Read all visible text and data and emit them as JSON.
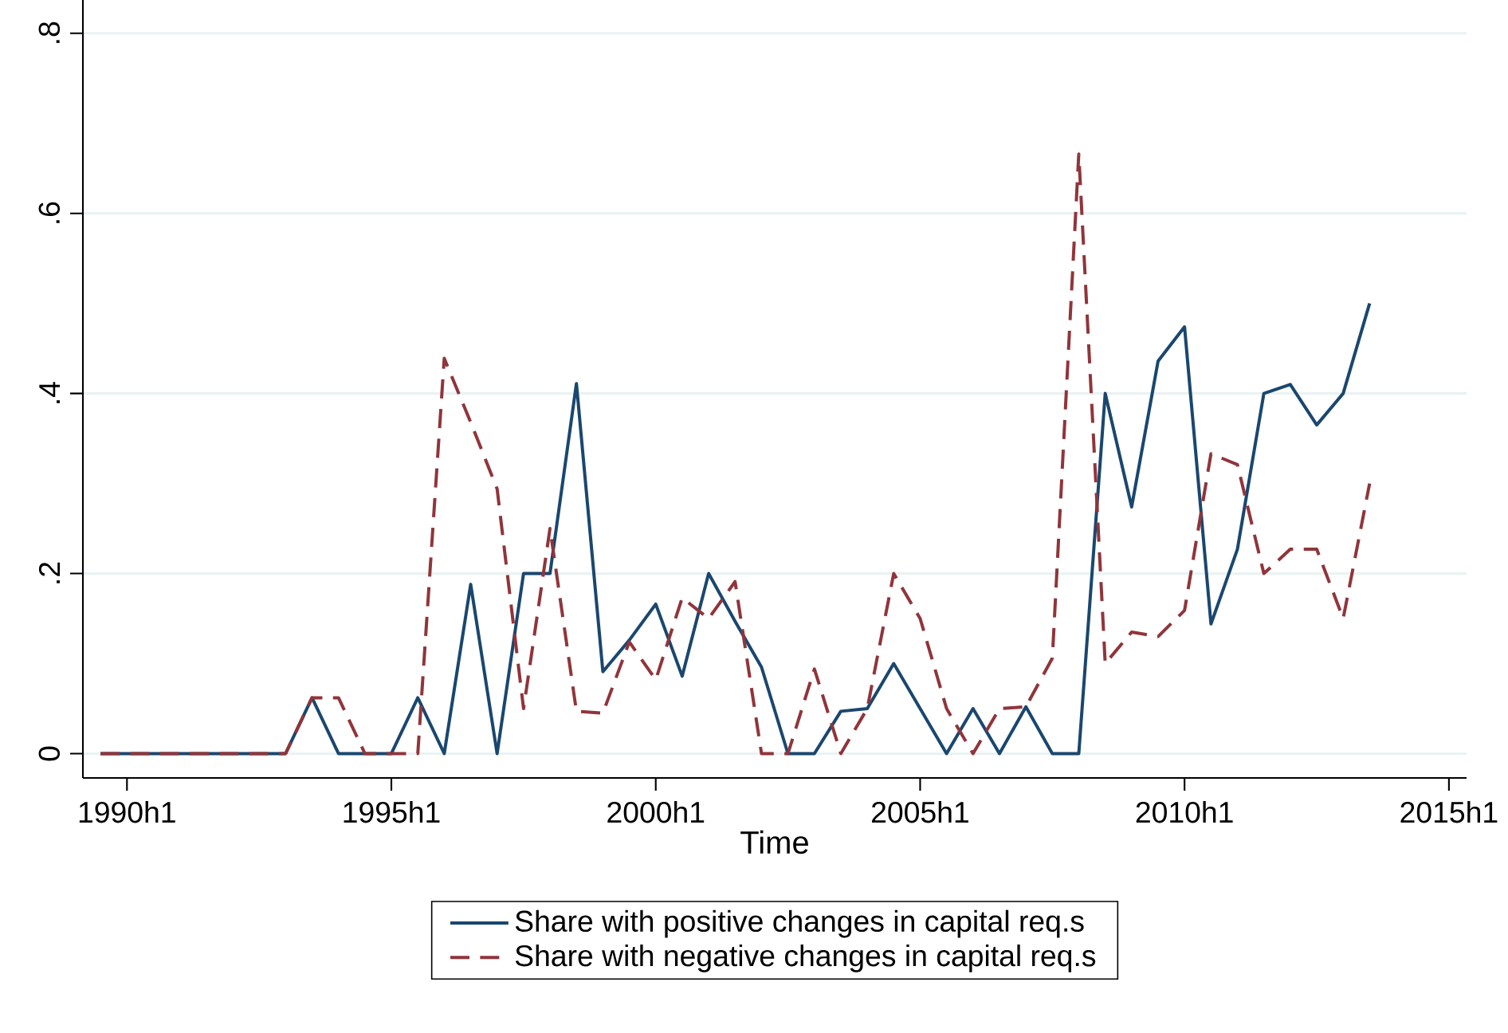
{
  "chart_data": {
    "type": "line",
    "xlabel": "Time",
    "x": [
      "1989-07",
      "1990-01",
      "1990-07",
      "1991-01",
      "1991-07",
      "1992-01",
      "1992-07",
      "1993-01",
      "1993-07",
      "1994-01",
      "1994-07",
      "1995-01",
      "1995-07",
      "1996-01",
      "1996-07",
      "1997-01",
      "1997-07",
      "1998-01",
      "1998-07",
      "1999-01",
      "1999-07",
      "2000-01",
      "2000-07",
      "2001-01",
      "2001-07",
      "2002-01",
      "2002-07",
      "2003-01",
      "2003-07",
      "2004-01",
      "2004-07",
      "2005-01",
      "2005-07",
      "2006-01",
      "2006-07",
      "2007-01",
      "2007-07",
      "2008-01",
      "2008-07",
      "2009-01",
      "2009-07",
      "2010-01",
      "2010-07",
      "2011-01",
      "2011-07",
      "2012-01",
      "2012-07",
      "2013-01",
      "2013-07"
    ],
    "series": [
      {
        "name": "Share with positive changes in capital req.s",
        "color": "#1a476f",
        "line_style": "solid",
        "values": [
          0,
          0,
          0,
          0,
          0,
          0,
          0,
          0,
          0.062,
          0,
          0,
          0,
          0.062,
          0,
          0.188,
          0,
          0.2,
          0.2,
          0.411,
          0.091,
          0.126,
          0.166,
          0.086,
          0.2,
          0.147,
          0.096,
          0,
          0,
          0.047,
          0.05,
          0.1,
          0.05,
          0,
          0.05,
          0,
          0.052,
          0,
          0,
          0.4,
          0.274,
          0.436,
          0.474,
          0.144,
          0.227,
          0.4,
          0.41,
          0.365,
          0.4,
          0.5
        ]
      },
      {
        "name": "Share with negative changes in capital req.s",
        "color": "#90353b",
        "line_style": "dashed",
        "values": [
          0,
          0,
          0,
          0,
          0,
          0,
          0,
          0,
          0.062,
          0.062,
          0,
          0,
          0,
          0.439,
          0.368,
          0.294,
          0.05,
          0.25,
          0.047,
          0.045,
          0.124,
          0.082,
          0.173,
          0.15,
          0.191,
          0,
          0,
          0.094,
          0,
          0.05,
          0.2,
          0.15,
          0.05,
          0,
          0.05,
          0.052,
          0.106,
          0.666,
          0.1,
          0.135,
          0.13,
          0.159,
          0.333,
          0.321,
          0.2,
          0.227,
          0.227,
          0.15,
          0.3
        ]
      }
    ],
    "xlim": [
      "1989-03",
      "2015-05"
    ],
    "ylim": [
      -0.027,
      0.837
    ],
    "xticks": [
      {
        "value": "1990-01",
        "label": "1990h1"
      },
      {
        "value": "1995-01",
        "label": "1995h1"
      },
      {
        "value": "2000-01",
        "label": "2000h1"
      },
      {
        "value": "2005-01",
        "label": "2005h1"
      },
      {
        "value": "2010-01",
        "label": "2010h1"
      },
      {
        "value": "2015-01",
        "label": "2015h1"
      }
    ],
    "yticks": [
      0,
      {
        "value": 0.2,
        "label": ".2"
      },
      {
        "value": 0.4,
        "label": ".4"
      },
      {
        "value": 0.6,
        "label": ".6"
      },
      {
        "value": 0.8,
        "label": ".8"
      }
    ],
    "grid": "y",
    "legend": "bottom",
    "marker": "none"
  }
}
